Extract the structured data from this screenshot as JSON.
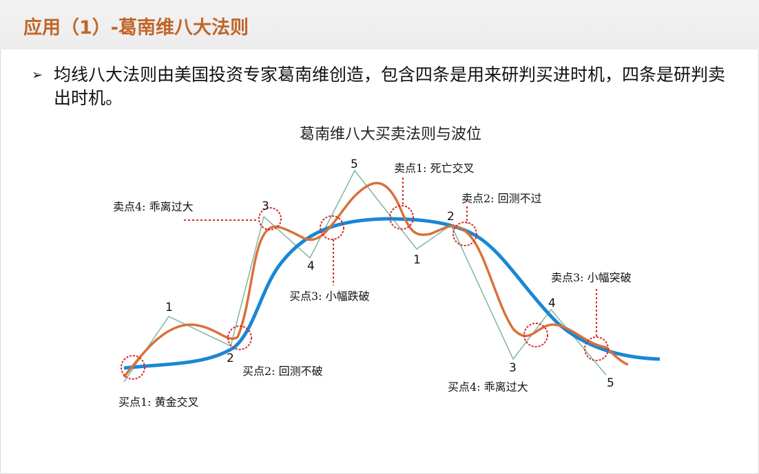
{
  "slide": {
    "title": "应用（1）-葛南维八大法则",
    "bullet_text": "均线八大法则由美国投资专家葛南维创造，包含四条是用来研判买进时机，四条是研判卖出时机。"
  },
  "diagram": {
    "title": "葛南维八大买卖法则与波位",
    "colors": {
      "ma_line": "#1b87d3",
      "price_line": "#d9713a",
      "wave_line": "#86b8a4",
      "marker": "#d62a2a"
    },
    "wave_labels": [
      "1",
      "2",
      "3",
      "4",
      "5",
      "1",
      "2",
      "3",
      "4",
      "5"
    ],
    "annotations": {
      "buy1": "买点1: 黄金交叉",
      "buy2": "买点2: 回测不破",
      "buy3": "买点3: 小幅跌破",
      "buy4": "买点4: 乖离过大",
      "sell1": "卖点1: 死亡交叉",
      "sell2": "卖点2: 回测不过",
      "sell3": "卖点3: 小幅突破",
      "sell4": "卖点4: 乖离过大"
    }
  }
}
